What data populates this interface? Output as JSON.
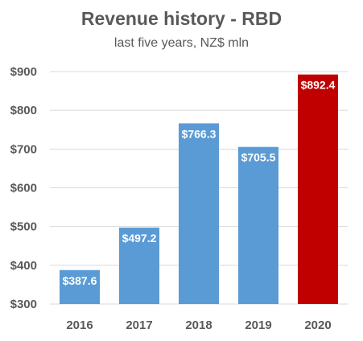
{
  "chart_data": {
    "type": "bar",
    "title": "Revenue history - RBD",
    "subtitle": "last five years, NZ$ mln",
    "categories": [
      "2016",
      "2017",
      "2018",
      "2019",
      "2020"
    ],
    "values": [
      387.6,
      497.2,
      766.3,
      705.5,
      892.4
    ],
    "data_labels": [
      "$387.6",
      "$497.2",
      "$766.3",
      "$705.5",
      "$892.4"
    ],
    "ylim": [
      300,
      900
    ],
    "yticks": [
      300,
      400,
      500,
      600,
      700,
      800,
      900
    ],
    "ytick_labels": [
      "$300",
      "$400",
      "$500",
      "$600",
      "$700",
      "$800",
      "$900"
    ],
    "grid": true,
    "legend": "none",
    "bar_colors": [
      "#5b9bd5",
      "#5b9bd5",
      "#5b9bd5",
      "#5b9bd5",
      "#c00000"
    ],
    "grid_color": "#d9d9d9",
    "text_color": "#595959"
  }
}
